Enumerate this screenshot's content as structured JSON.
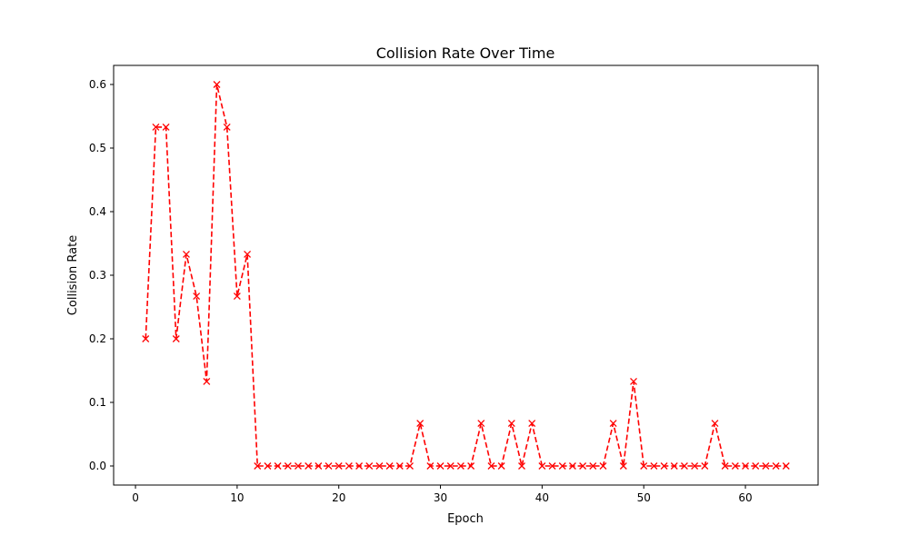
{
  "chart_data": {
    "type": "line",
    "title": "Collision Rate Over Time",
    "xlabel": "Epoch",
    "ylabel": "Collision Rate",
    "xlim": [
      -2.15,
      67.15
    ],
    "ylim": [
      -0.03,
      0.63
    ],
    "x_ticks": [
      0,
      10,
      20,
      30,
      40,
      50,
      60
    ],
    "y_ticks": [
      0.0,
      0.1,
      0.2,
      0.3,
      0.4,
      0.5,
      0.6
    ],
    "y_tick_labels": [
      "0.0",
      "0.1",
      "0.2",
      "0.3",
      "0.4",
      "0.5",
      "0.6"
    ],
    "grid": false,
    "series": [
      {
        "color": "#ff0000",
        "line_style": "dashed",
        "marker": "x",
        "x": [
          1,
          2,
          3,
          4,
          5,
          6,
          7,
          8,
          9,
          10,
          11,
          12,
          13,
          14,
          15,
          16,
          17,
          18,
          19,
          20,
          21,
          22,
          23,
          24,
          25,
          26,
          27,
          28,
          29,
          30,
          31,
          32,
          33,
          34,
          35,
          36,
          37,
          38,
          39,
          40,
          41,
          42,
          43,
          44,
          45,
          46,
          47,
          48,
          49,
          50,
          51,
          52,
          53,
          54,
          55,
          56,
          57,
          58,
          59,
          60,
          61,
          62,
          63,
          64
        ],
        "values": [
          0.2,
          0.533,
          0.533,
          0.2,
          0.333,
          0.267,
          0.133,
          0.6,
          0.533,
          0.267,
          0.333,
          0,
          0,
          0,
          0,
          0,
          0,
          0,
          0,
          0,
          0,
          0,
          0,
          0,
          0,
          0,
          0,
          0.067,
          0,
          0,
          0,
          0,
          0,
          0.067,
          0,
          0,
          0.067,
          0,
          0.067,
          0,
          0,
          0,
          0,
          0,
          0,
          0,
          0.067,
          0,
          0.133,
          0,
          0,
          0,
          0,
          0,
          0,
          0,
          0.067,
          0,
          0,
          0,
          0,
          0,
          0,
          0
        ]
      }
    ]
  }
}
